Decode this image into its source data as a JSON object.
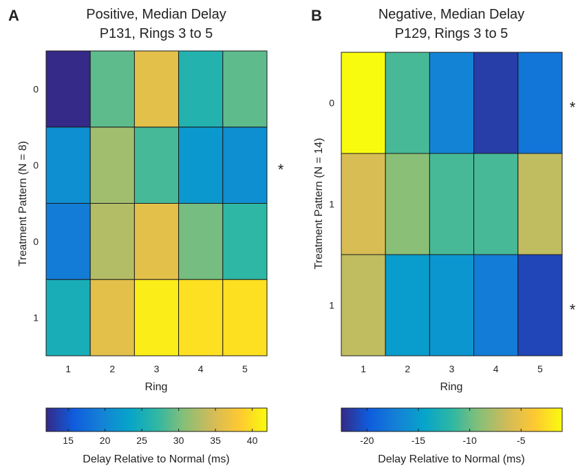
{
  "chart_data": [
    {
      "type": "heatmap",
      "panel_label": "A",
      "title_lines": [
        "Positive, Median Delay",
        "P131, Rings 3 to 5"
      ],
      "xlabel": "Ring",
      "ylabel": "Treatment Pattern  (N = 8)",
      "x_categories": [
        "1",
        "2",
        "3",
        "4",
        "5"
      ],
      "y_categories": [
        "0",
        "0",
        "0",
        "1"
      ],
      "values": [
        [
          12,
          29,
          36,
          26,
          29
        ],
        [
          21,
          32,
          28,
          22,
          21
        ],
        [
          19,
          33,
          36,
          30,
          27
        ],
        [
          25,
          36,
          41,
          40,
          40
        ]
      ],
      "significance": [
        "",
        "*",
        "",
        ""
      ],
      "colorbar": {
        "min": 12,
        "max": 42,
        "ticks": [
          15,
          20,
          25,
          30,
          35,
          40
        ],
        "label": "Delay Relative to Normal (ms)"
      }
    },
    {
      "type": "heatmap",
      "panel_label": "B",
      "title_lines": [
        "Negative, Median Delay",
        "P129,   Rings 3 to 5"
      ],
      "xlabel": "Ring",
      "ylabel": "Treatment Pattern  (N = 14)",
      "x_categories": [
        "1",
        "2",
        "3",
        "4",
        "5"
      ],
      "y_categories": [
        "0",
        "1",
        "1"
      ],
      "values": [
        [
          -1,
          -11,
          -17,
          -21.5,
          -18
        ],
        [
          -6,
          -9,
          -11,
          -11,
          -7
        ],
        [
          -7,
          -15,
          -15.5,
          -17.5,
          -21
        ]
      ],
      "significance": [
        "*",
        "",
        "*"
      ],
      "colorbar": {
        "min": -22.5,
        "max": -1,
        "ticks": [
          -20,
          -15,
          -10,
          -5
        ],
        "label": "Delay Relative to Normal (ms)"
      }
    }
  ],
  "colormap": [
    "#352a87",
    "#0f5cdd",
    "#1481d6",
    "#06a4ca",
    "#2eb7a4",
    "#87bf77",
    "#d1bb59",
    "#fec832",
    "#f9fb0e"
  ]
}
